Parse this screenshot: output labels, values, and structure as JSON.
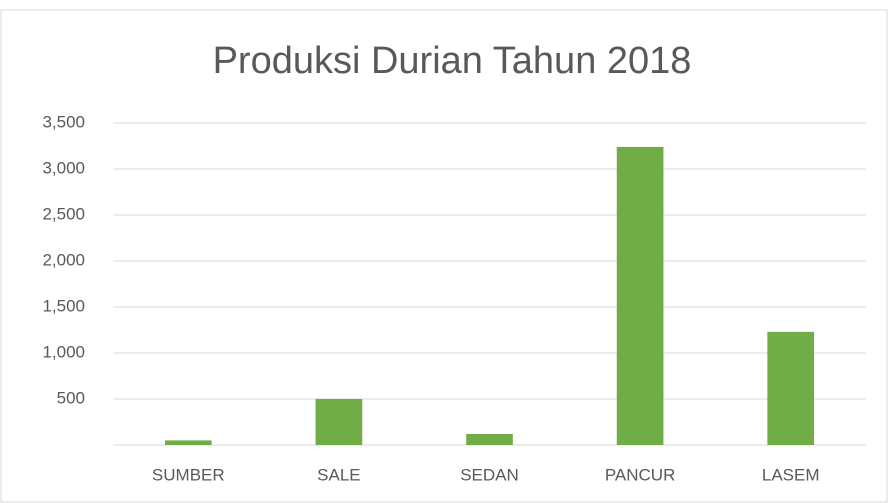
{
  "chart_data": {
    "type": "bar",
    "title": "Produksi Durian Tahun 2018",
    "categories": [
      "SUMBER",
      "SALE",
      "SEDAN",
      "PANCUR",
      "LASEM"
    ],
    "values": [
      50,
      500,
      120,
      3240,
      1230
    ],
    "color": "#70ad47",
    "ylim": [
      0,
      3500
    ],
    "yticks": [
      500,
      {
        "value": 1000,
        "label": "1,000"
      },
      {
        "value": 1500,
        "label": "1,500"
      },
      {
        "value": 2000,
        "label": "2,000"
      },
      {
        "value": 2500,
        "label": "2,500"
      },
      {
        "value": 3000,
        "label": "3,000"
      },
      {
        "value": 3500,
        "label": "3,500"
      }
    ],
    "grid": true
  }
}
